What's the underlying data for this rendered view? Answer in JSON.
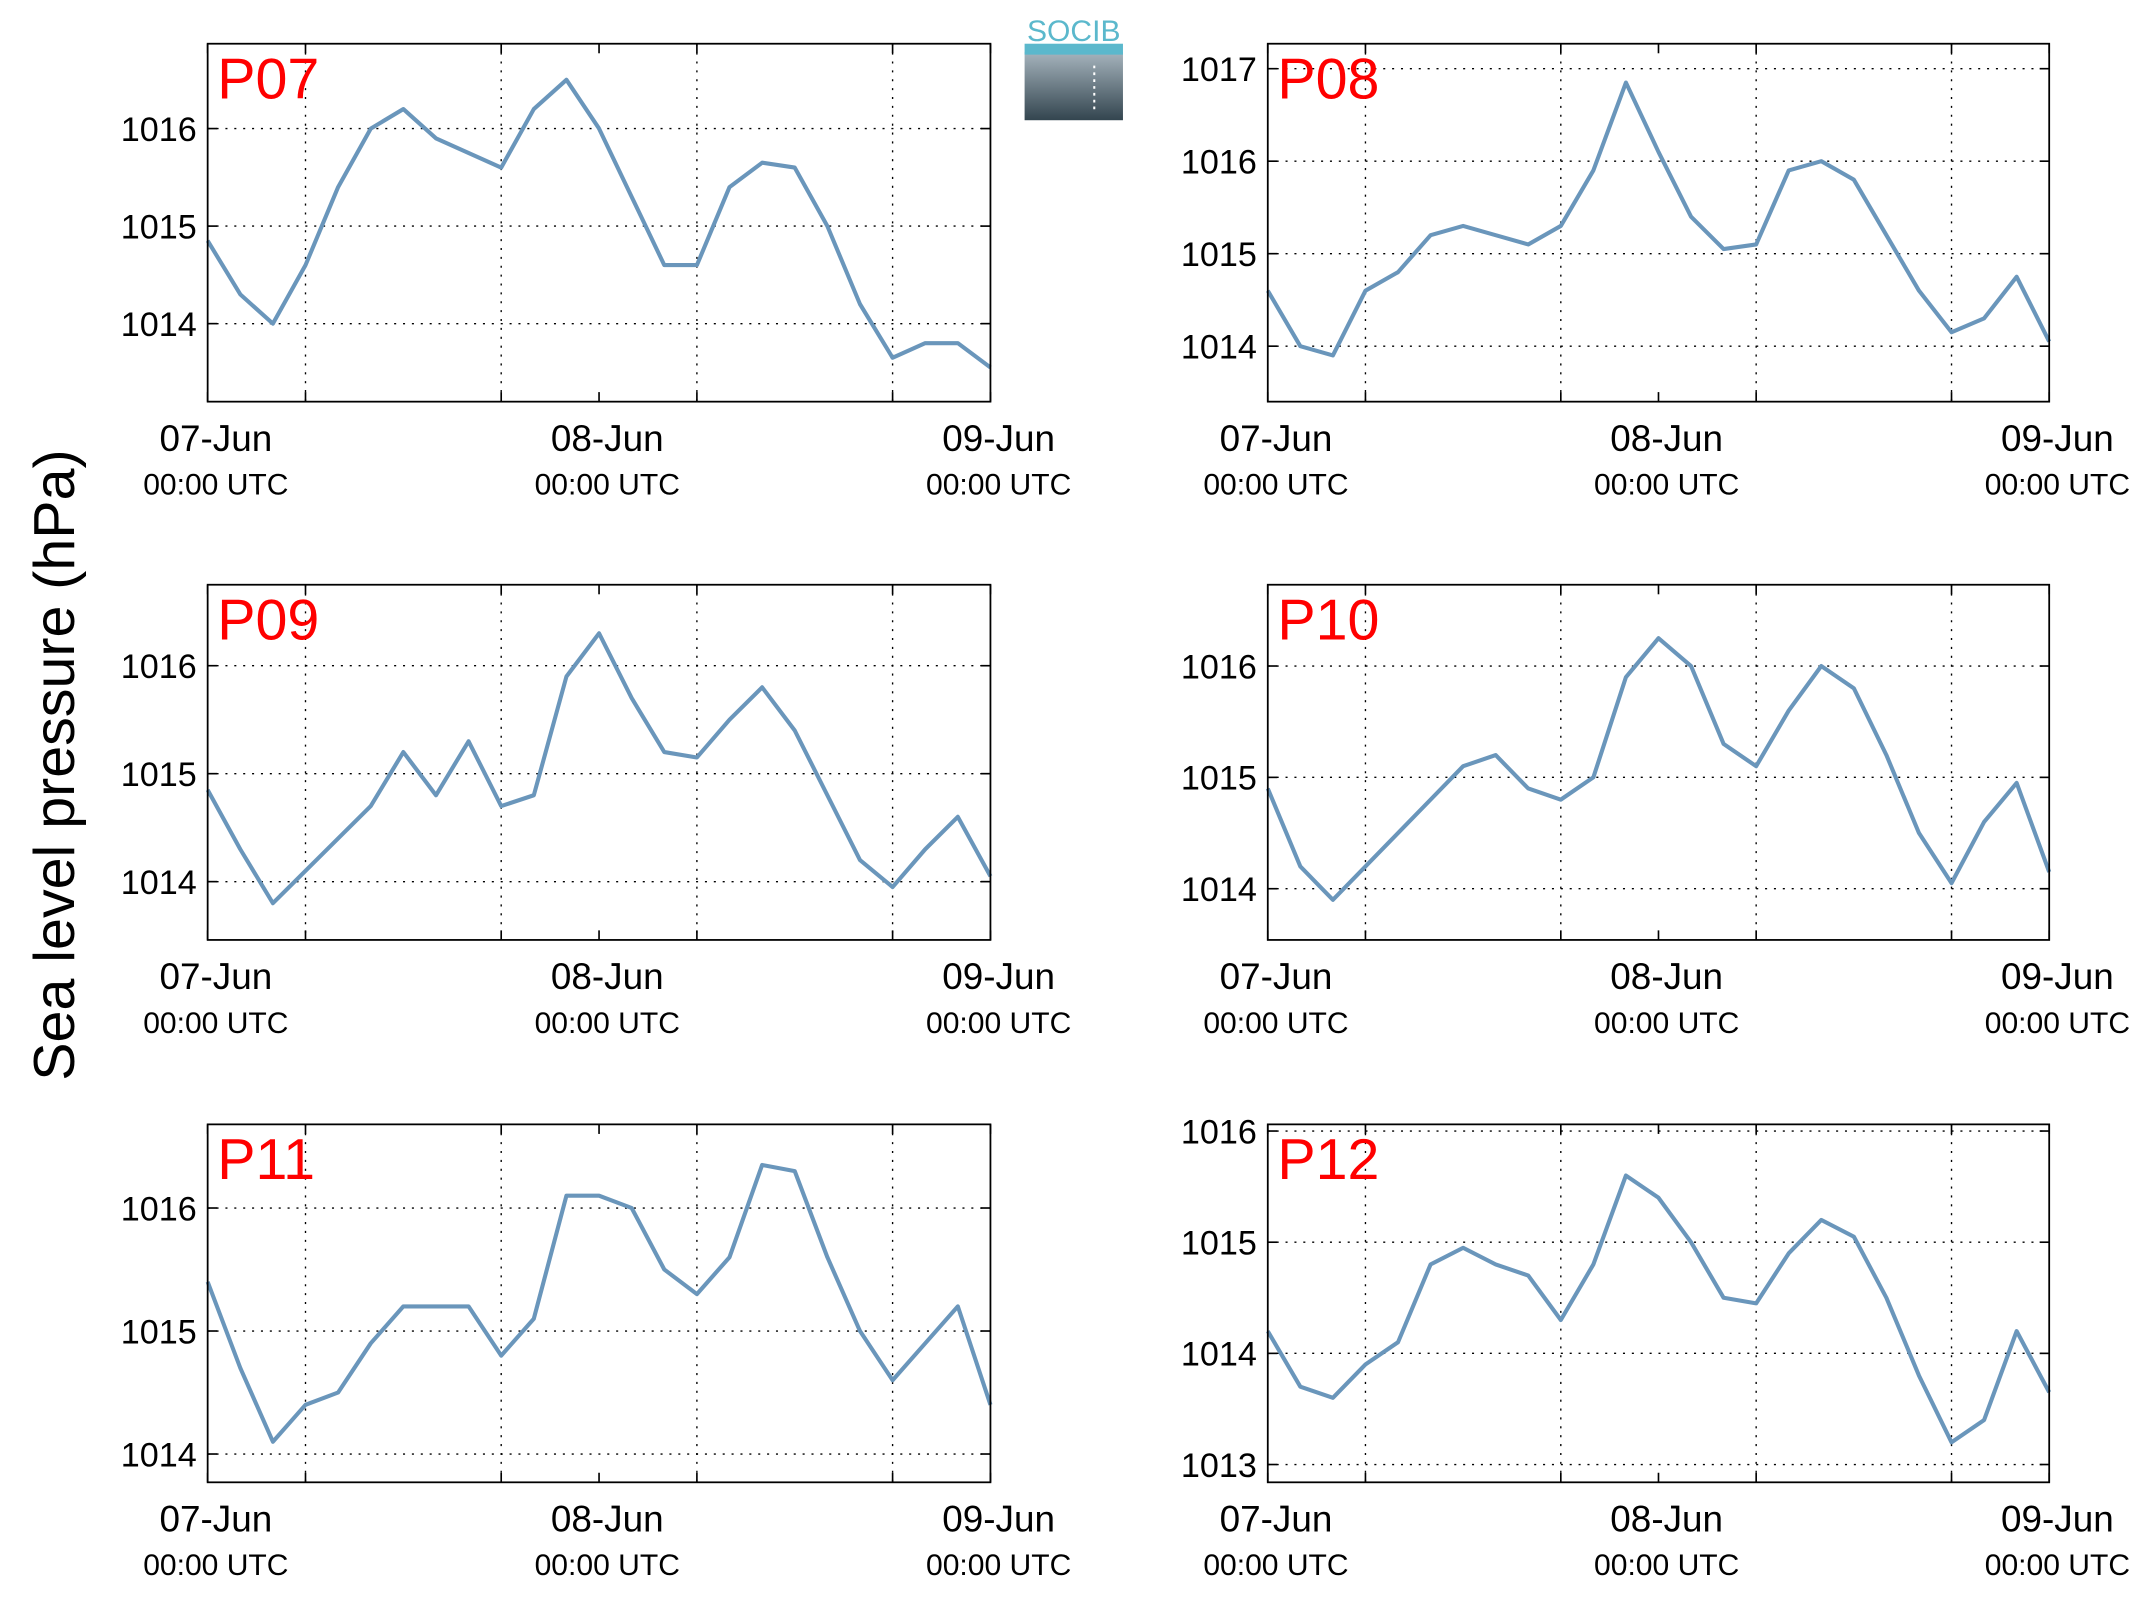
{
  "ylabel": "Sea level pressure (hPa)",
  "logo": "SOCIB",
  "chart_data": [
    {
      "type": "line",
      "title": "P07",
      "color": "#6a96bb",
      "x": [
        "07-Jun 00:00",
        "07-Jun 02:00",
        "07-Jun 04:00",
        "07-Jun 06:00",
        "07-Jun 08:00",
        "07-Jun 10:00",
        "07-Jun 12:00",
        "07-Jun 14:00",
        "07-Jun 16:00",
        "07-Jun 18:00",
        "07-Jun 20:00",
        "07-Jun 22:00",
        "08-Jun 00:00",
        "08-Jun 02:00",
        "08-Jun 04:00",
        "08-Jun 06:00",
        "08-Jun 08:00",
        "08-Jun 10:00",
        "08-Jun 12:00",
        "08-Jun 14:00",
        "08-Jun 16:00",
        "08-Jun 18:00",
        "08-Jun 20:00",
        "08-Jun 22:00",
        "09-Jun 00:00"
      ],
      "values": [
        1014.85,
        1014.3,
        1014.0,
        1014.6,
        1015.4,
        1016.0,
        1016.2,
        1015.9,
        1015.75,
        1015.6,
        1016.2,
        1016.5,
        1016.0,
        1015.3,
        1014.6,
        1014.6,
        1015.4,
        1015.65,
        1015.6,
        1015.0,
        1014.2,
        1013.65,
        1013.8,
        1013.8,
        1013.55
      ],
      "ylim": [
        1013.2,
        1016.87
      ],
      "yticks": [
        1014,
        1015,
        1016
      ],
      "xlim": [
        "07-Jun 00:00",
        "09-Jun 00:00"
      ],
      "xticks": [
        {
          "value": "07-Jun 00:00",
          "label": [
            "07-Jun",
            "00:00 UTC"
          ]
        },
        {
          "value": "08-Jun 00:00",
          "label": [
            "08-Jun",
            "00:00 UTC"
          ]
        },
        {
          "value": "09-Jun 00:00",
          "label": [
            "09-Jun",
            "00:00 UTC"
          ]
        }
      ],
      "xgrid": [
        "07-Jun 06:00",
        "07-Jun 18:00",
        "08-Jun 06:00",
        "08-Jun 18:00"
      ],
      "grid": true
    },
    {
      "type": "line",
      "title": "P08",
      "color": "#6a96bb",
      "x": [
        "07-Jun 00:00",
        "07-Jun 02:00",
        "07-Jun 04:00",
        "07-Jun 06:00",
        "07-Jun 08:00",
        "07-Jun 10:00",
        "07-Jun 12:00",
        "07-Jun 14:00",
        "07-Jun 16:00",
        "07-Jun 18:00",
        "07-Jun 20:00",
        "07-Jun 22:00",
        "08-Jun 00:00",
        "08-Jun 02:00",
        "08-Jun 04:00",
        "08-Jun 06:00",
        "08-Jun 08:00",
        "08-Jun 10:00",
        "08-Jun 12:00",
        "08-Jun 14:00",
        "08-Jun 16:00",
        "08-Jun 18:00",
        "08-Jun 20:00",
        "08-Jun 22:00",
        "09-Jun 00:00"
      ],
      "values": [
        1014.6,
        1014.0,
        1013.9,
        1014.6,
        1014.8,
        1015.2,
        1015.3,
        1015.2,
        1015.1,
        1015.3,
        1015.9,
        1016.85,
        1016.1,
        1015.4,
        1015.05,
        1015.1,
        1015.9,
        1016.0,
        1015.8,
        1015.2,
        1014.6,
        1014.15,
        1014.3,
        1014.75,
        1014.05
      ],
      "ylim": [
        1013.4,
        1017.27
      ],
      "yticks": [
        1014,
        1015,
        1016,
        1017
      ],
      "xlim": [
        "07-Jun 00:00",
        "09-Jun 00:00"
      ],
      "xticks": [
        {
          "value": "07-Jun 00:00",
          "label": [
            "07-Jun",
            "00:00 UTC"
          ]
        },
        {
          "value": "08-Jun 00:00",
          "label": [
            "08-Jun",
            "00:00 UTC"
          ]
        },
        {
          "value": "09-Jun 00:00",
          "label": [
            "09-Jun",
            "00:00 UTC"
          ]
        }
      ],
      "xgrid": [
        "07-Jun 06:00",
        "07-Jun 18:00",
        "08-Jun 06:00",
        "08-Jun 18:00"
      ],
      "grid": true
    },
    {
      "type": "line",
      "title": "P09",
      "color": "#6a96bb",
      "x": [
        "07-Jun 00:00",
        "07-Jun 02:00",
        "07-Jun 04:00",
        "07-Jun 06:00",
        "07-Jun 08:00",
        "07-Jun 10:00",
        "07-Jun 12:00",
        "07-Jun 14:00",
        "07-Jun 16:00",
        "07-Jun 18:00",
        "07-Jun 20:00",
        "07-Jun 22:00",
        "08-Jun 00:00",
        "08-Jun 02:00",
        "08-Jun 04:00",
        "08-Jun 06:00",
        "08-Jun 08:00",
        "08-Jun 10:00",
        "08-Jun 12:00",
        "08-Jun 14:00",
        "08-Jun 16:00",
        "08-Jun 18:00",
        "08-Jun 20:00",
        "08-Jun 22:00",
        "09-Jun 00:00"
      ],
      "values": [
        1014.85,
        1014.3,
        1013.8,
        1014.1,
        1014.4,
        1014.7,
        1015.2,
        1014.8,
        1015.3,
        1014.7,
        1014.8,
        1015.9,
        1016.3,
        1015.7,
        1015.2,
        1015.15,
        1015.5,
        1015.8,
        1015.4,
        1014.8,
        1014.2,
        1013.95,
        1014.3,
        1014.6,
        1014.05
      ],
      "ylim": [
        1013.46,
        1016.75
      ],
      "yticks": [
        1014,
        1015,
        1016
      ],
      "xlim": [
        "07-Jun 00:00",
        "09-Jun 00:00"
      ],
      "xticks": [
        {
          "value": "07-Jun 00:00",
          "label": [
            "07-Jun",
            "00:00 UTC"
          ]
        },
        {
          "value": "08-Jun 00:00",
          "label": [
            "08-Jun",
            "00:00 UTC"
          ]
        },
        {
          "value": "09-Jun 00:00",
          "label": [
            "09-Jun",
            "00:00 UTC"
          ]
        }
      ],
      "xgrid": [
        "07-Jun 06:00",
        "07-Jun 18:00",
        "08-Jun 06:00",
        "08-Jun 18:00"
      ],
      "grid": true
    },
    {
      "type": "line",
      "title": "P10",
      "color": "#6a96bb",
      "x": [
        "07-Jun 00:00",
        "07-Jun 02:00",
        "07-Jun 04:00",
        "07-Jun 06:00",
        "07-Jun 08:00",
        "07-Jun 10:00",
        "07-Jun 12:00",
        "07-Jun 14:00",
        "07-Jun 16:00",
        "07-Jun 18:00",
        "07-Jun 20:00",
        "07-Jun 22:00",
        "08-Jun 00:00",
        "08-Jun 02:00",
        "08-Jun 04:00",
        "08-Jun 06:00",
        "08-Jun 08:00",
        "08-Jun 10:00",
        "08-Jun 12:00",
        "08-Jun 14:00",
        "08-Jun 16:00",
        "08-Jun 18:00",
        "08-Jun 20:00",
        "08-Jun 22:00",
        "09-Jun 00:00"
      ],
      "values": [
        1014.9,
        1014.2,
        1013.9,
        1014.2,
        1014.5,
        1014.8,
        1015.1,
        1015.2,
        1014.9,
        1014.8,
        1015.0,
        1015.9,
        1016.25,
        1016.0,
        1015.3,
        1015.1,
        1015.6,
        1016.0,
        1015.8,
        1015.2,
        1014.5,
        1014.05,
        1014.6,
        1014.95,
        1014.15
      ],
      "ylim": [
        1013.54,
        1016.73
      ],
      "yticks": [
        1014,
        1015,
        1016
      ],
      "xlim": [
        "07-Jun 00:00",
        "09-Jun 00:00"
      ],
      "xticks": [
        {
          "value": "07-Jun 00:00",
          "label": [
            "07-Jun",
            "00:00 UTC"
          ]
        },
        {
          "value": "08-Jun 00:00",
          "label": [
            "08-Jun",
            "00:00 UTC"
          ]
        },
        {
          "value": "09-Jun 00:00",
          "label": [
            "09-Jun",
            "00:00 UTC"
          ]
        }
      ],
      "xgrid": [
        "07-Jun 06:00",
        "07-Jun 18:00",
        "08-Jun 06:00",
        "08-Jun 18:00"
      ],
      "grid": true
    },
    {
      "type": "line",
      "title": "P11",
      "color": "#6a96bb",
      "x": [
        "07-Jun 00:00",
        "07-Jun 02:00",
        "07-Jun 04:00",
        "07-Jun 06:00",
        "07-Jun 08:00",
        "07-Jun 10:00",
        "07-Jun 12:00",
        "07-Jun 14:00",
        "07-Jun 16:00",
        "07-Jun 18:00",
        "07-Jun 20:00",
        "07-Jun 22:00",
        "08-Jun 00:00",
        "08-Jun 02:00",
        "08-Jun 04:00",
        "08-Jun 06:00",
        "08-Jun 08:00",
        "08-Jun 10:00",
        "08-Jun 12:00",
        "08-Jun 14:00",
        "08-Jun 16:00",
        "08-Jun 18:00",
        "08-Jun 20:00",
        "08-Jun 22:00",
        "09-Jun 00:00"
      ],
      "values": [
        1015.4,
        1014.7,
        1014.1,
        1014.4,
        1014.5,
        1014.9,
        1015.2,
        1015.2,
        1015.2,
        1014.8,
        1015.1,
        1016.1,
        1016.1,
        1016.0,
        1015.5,
        1015.3,
        1015.6,
        1016.35,
        1016.3,
        1015.6,
        1015.0,
        1014.6,
        1014.9,
        1015.2,
        1014.4
      ],
      "ylim": [
        1013.77,
        1016.68
      ],
      "yticks": [
        1014,
        1015,
        1016
      ],
      "xlim": [
        "07-Jun 00:00",
        "09-Jun 00:00"
      ],
      "xticks": [
        {
          "value": "07-Jun 00:00",
          "label": [
            "07-Jun",
            "00:00 UTC"
          ]
        },
        {
          "value": "08-Jun 00:00",
          "label": [
            "08-Jun",
            "00:00 UTC"
          ]
        },
        {
          "value": "09-Jun 00:00",
          "label": [
            "09-Jun",
            "00:00 UTC"
          ]
        }
      ],
      "xgrid": [
        "07-Jun 06:00",
        "07-Jun 18:00",
        "08-Jun 06:00",
        "08-Jun 18:00"
      ],
      "grid": true
    },
    {
      "type": "line",
      "title": "P12",
      "color": "#6a96bb",
      "x": [
        "07-Jun 00:00",
        "07-Jun 02:00",
        "07-Jun 04:00",
        "07-Jun 06:00",
        "07-Jun 08:00",
        "07-Jun 10:00",
        "07-Jun 12:00",
        "07-Jun 14:00",
        "07-Jun 16:00",
        "07-Jun 18:00",
        "07-Jun 20:00",
        "07-Jun 22:00",
        "08-Jun 00:00",
        "08-Jun 02:00",
        "08-Jun 04:00",
        "08-Jun 06:00",
        "08-Jun 08:00",
        "08-Jun 10:00",
        "08-Jun 12:00",
        "08-Jun 14:00",
        "08-Jun 16:00",
        "08-Jun 18:00",
        "08-Jun 20:00",
        "08-Jun 22:00",
        "09-Jun 00:00"
      ],
      "values": [
        1014.2,
        1013.7,
        1013.6,
        1013.9,
        1014.1,
        1014.8,
        1014.95,
        1014.8,
        1014.7,
        1014.3,
        1014.8,
        1015.6,
        1015.4,
        1015.0,
        1014.5,
        1014.45,
        1014.9,
        1015.2,
        1015.05,
        1014.5,
        1013.8,
        1013.2,
        1013.4,
        1014.2,
        1013.65
      ],
      "ylim": [
        1012.84,
        1016.06
      ],
      "yticks": [
        1013,
        1014,
        1015,
        1016
      ],
      "xlim": [
        "07-Jun 00:00",
        "09-Jun 00:00"
      ],
      "xticks": [
        {
          "value": "07-Jun 00:00",
          "label": [
            "07-Jun",
            "00:00 UTC"
          ]
        },
        {
          "value": "08-Jun 00:00",
          "label": [
            "08-Jun",
            "00:00 UTC"
          ]
        },
        {
          "value": "09-Jun 00:00",
          "label": [
            "09-Jun",
            "00:00 UTC"
          ]
        }
      ],
      "xgrid": [
        "07-Jun 06:00",
        "07-Jun 18:00",
        "08-Jun 06:00",
        "08-Jun 18:00"
      ],
      "grid": true
    }
  ]
}
